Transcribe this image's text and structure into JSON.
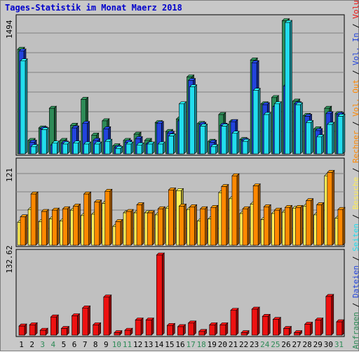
{
  "window": {
    "title": "Tages-Statistik im Monat Maerz 2018"
  },
  "colors": {
    "hits": "#2e8b57",
    "files": "#2244dd",
    "pages": "#22ddee",
    "visits": "#ffee55",
    "sites": "#ff8800",
    "kbytes": "#ee1111",
    "title": "#0000cc",
    "plot_bg": "#c0c0c0",
    "grid": "#808080"
  },
  "right_labels": {
    "top": [
      {
        "text": "Anfragen",
        "color": "#2e8b57"
      },
      {
        "text": " / ",
        "color": "#000000"
      },
      {
        "text": "Dateien",
        "color": "#2244dd"
      },
      {
        "text": " / ",
        "color": "#000000"
      },
      {
        "text": "Seiten",
        "color": "#22ddee"
      },
      {
        "text": " / ",
        "color": "#000000"
      },
      {
        "text": "Besuche",
        "color": "#ffee55"
      },
      {
        "text": " / ",
        "color": "#000000"
      },
      {
        "text": "Rechner",
        "color": "#ff8800"
      },
      {
        "text": " / ",
        "color": "#000000"
      },
      {
        "text": "Vol. Out",
        "color": "#ff8800"
      },
      {
        "text": " / ",
        "color": "#000000"
      },
      {
        "text": "Vol. In",
        "color": "#2244dd"
      },
      {
        "text": " / ",
        "color": "#000000"
      },
      {
        "text": "Volumen",
        "color": "#ee1111"
      }
    ]
  },
  "chart_data": [
    {
      "type": "bar",
      "panel": "top",
      "ymax_label": "1494",
      "ylim": [
        0,
        1494
      ],
      "categories": [
        "1",
        "2",
        "3",
        "4",
        "5",
        "6",
        "7",
        "8",
        "9",
        "10",
        "11",
        "12",
        "13",
        "14",
        "15",
        "16",
        "17",
        "18",
        "19",
        "20",
        "21",
        "22",
        "23",
        "24",
        "25",
        "26",
        "27",
        "28",
        "29",
        "30",
        "31"
      ],
      "weekend_days": [
        "3",
        "4",
        "10",
        "11",
        "17",
        "18",
        "24",
        "25",
        "31"
      ],
      "series": [
        {
          "name": "Anfragen",
          "values": [
            1170,
            150,
            290,
            510,
            150,
            320,
            610,
            210,
            370,
            90,
            150,
            220,
            150,
            350,
            250,
            390,
            860,
            340,
            140,
            440,
            360,
            160,
            1050,
            560,
            630,
            1490,
            590,
            430,
            280,
            510,
            450
          ]
        },
        {
          "name": "Dateien",
          "values": [
            1150,
            130,
            280,
            100,
            120,
            290,
            340,
            150,
            280,
            70,
            130,
            170,
            110,
            340,
            230,
            370,
            820,
            330,
            130,
            320,
            360,
            150,
            1020,
            550,
            530,
            760,
            560,
            420,
            260,
            450,
            440
          ]
        },
        {
          "name": "Seiten",
          "values": [
            1040,
            80,
            270,
            120,
            110,
            120,
            110,
            110,
            140,
            60,
            110,
            100,
            110,
            110,
            200,
            560,
            750,
            310,
            80,
            310,
            230,
            140,
            710,
            440,
            560,
            1470,
            550,
            350,
            190,
            330,
            420
          ]
        }
      ]
    },
    {
      "type": "bar",
      "panel": "middle",
      "ymax_label": "121",
      "ylim": [
        0,
        121
      ],
      "categories": [
        "1",
        "2",
        "3",
        "4",
        "5",
        "6",
        "7",
        "8",
        "9",
        "10",
        "11",
        "12",
        "13",
        "14",
        "15",
        "16",
        "17",
        "18",
        "19",
        "20",
        "21",
        "22",
        "23",
        "24",
        "25",
        "26",
        "27",
        "28",
        "29",
        "30",
        "31"
      ],
      "series": [
        {
          "name": "Besuche",
          "values": [
            34,
            53,
            35,
            39,
            36,
            52,
            44,
            46,
            62,
            28,
            48,
            48,
            48,
            45,
            55,
            81,
            53,
            36,
            39,
            78,
            69,
            47,
            61,
            38,
            47,
            49,
            55,
            58,
            45,
            103,
            40
          ]
        },
        {
          "name": "Rechner",
          "values": [
            42,
            76,
            50,
            52,
            54,
            58,
            76,
            64,
            80,
            35,
            50,
            60,
            48,
            54,
            82,
            58,
            57,
            54,
            56,
            87,
            103,
            54,
            88,
            57,
            52,
            56,
            56,
            66,
            60,
            108,
            53
          ]
        }
      ]
    },
    {
      "type": "bar",
      "panel": "bottom",
      "ymax_label": "132.62",
      "ylim": [
        0,
        132.62
      ],
      "categories": [
        "1",
        "2",
        "3",
        "4",
        "5",
        "6",
        "7",
        "8",
        "9",
        "10",
        "11",
        "12",
        "13",
        "14",
        "15",
        "16",
        "17",
        "18",
        "19",
        "20",
        "21",
        "22",
        "23",
        "24",
        "25",
        "26",
        "27",
        "28",
        "29",
        "30",
        "31"
      ],
      "series": [
        {
          "name": "Volumen",
          "values": [
            15,
            17,
            8,
            30,
            11,
            32,
            45,
            17,
            63,
            4,
            8,
            25,
            25,
            132.62,
            16,
            14,
            20,
            6,
            17,
            17,
            41,
            4,
            43,
            31,
            26,
            11,
            4,
            18,
            25,
            64,
            22
          ]
        }
      ]
    }
  ]
}
